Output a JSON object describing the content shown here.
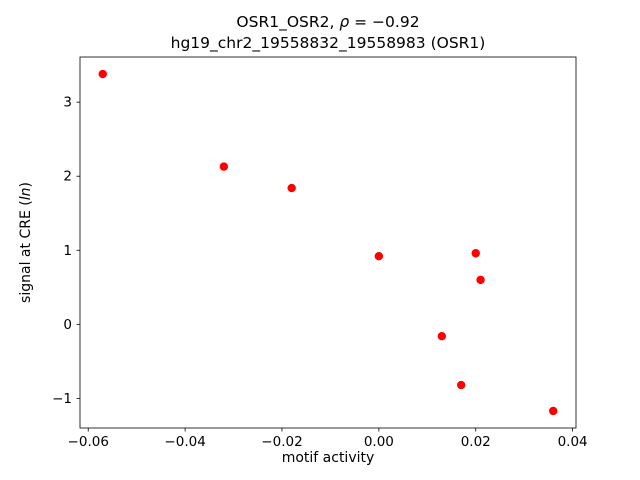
{
  "figure": {
    "title": {
      "line1_prefix": "OSR1_OSR2, ",
      "line1_rho": "ρ",
      "line1_suffix": " = −0.92",
      "line2": "hg19_chr2_19558832_19558983 (OSR1)"
    },
    "xlabel": "motif activity",
    "ylabel": {
      "prefix": "signal at CRE (",
      "italic": "ln",
      "suffix": ")"
    }
  },
  "chart_data": {
    "type": "scatter",
    "title": "OSR1_OSR2, ρ = −0.92",
    "subtitle": "hg19_chr2_19558832_19558983 (OSR1)",
    "xlabel": "motif activity",
    "ylabel": "signal at CRE (ln)",
    "marker_color": "#ff0000",
    "axis_color": "#000000",
    "background_color": "#ffffff",
    "grid": false,
    "legend_position": "none",
    "xlim": [
      -0.0617,
      0.0407
    ],
    "ylim": [
      -1.4,
      3.61
    ],
    "x_ticks": [
      {
        "value": -0.06,
        "label": "−0.06"
      },
      {
        "value": -0.04,
        "label": "−0.04"
      },
      {
        "value": -0.02,
        "label": "−0.02"
      },
      {
        "value": 0.0,
        "label": "0.00"
      },
      {
        "value": 0.02,
        "label": "0.02"
      },
      {
        "value": 0.04,
        "label": "0.04"
      }
    ],
    "y_ticks": [
      {
        "value": -1,
        "label": "−1"
      },
      {
        "value": 0,
        "label": "0"
      },
      {
        "value": 1,
        "label": "1"
      },
      {
        "value": 2,
        "label": "2"
      },
      {
        "value": 3,
        "label": "3"
      }
    ],
    "points": [
      {
        "x": -0.057,
        "y": 3.38
      },
      {
        "x": -0.032,
        "y": 2.13
      },
      {
        "x": -0.018,
        "y": 1.84
      },
      {
        "x": 0.0,
        "y": 0.92
      },
      {
        "x": 0.013,
        "y": -0.16
      },
      {
        "x": 0.017,
        "y": -0.82
      },
      {
        "x": 0.02,
        "y": 0.96
      },
      {
        "x": 0.021,
        "y": 0.6
      },
      {
        "x": 0.036,
        "y": -1.17
      }
    ]
  }
}
